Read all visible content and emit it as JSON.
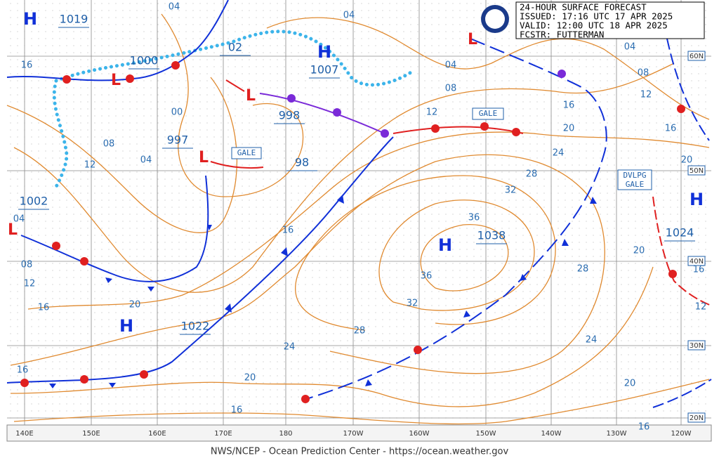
{
  "header": {
    "lines": [
      "24-HOUR SURFACE FORECAST",
      "ISSUED: 17:16 UTC 17 APR 2025",
      "VALID:  12:00 UTC 18 APR 2025",
      "FCSTR:  FUTTERMAN"
    ]
  },
  "footer": "NWS/NCEP - Ocean Prediction Center - https://ocean.weather.gov",
  "longitude_labels": [
    "140E",
    "150E",
    "160E",
    "170E",
    "180",
    "170W",
    "160W",
    "150W",
    "140W",
    "130W",
    "120W"
  ],
  "latitude_labels": [
    "60N",
    "50N",
    "40N",
    "30N",
    "20N"
  ],
  "centers": [
    "H",
    "H",
    "H",
    "H",
    "H",
    "L",
    "L",
    "L",
    "L",
    "L"
  ],
  "pressure_labels": [
    "1019",
    "1007",
    "1038",
    "1022",
    "1024",
    "1000",
    "998",
    "997",
    "1002",
    "02",
    "98"
  ],
  "gale_labels": [
    "GALE",
    "GALE",
    [
      "DVLPG",
      "GALE"
    ]
  ],
  "isobar_labels": [
    "04",
    "04",
    "16",
    "08",
    "12",
    "04",
    "00",
    "16",
    "04",
    "08",
    "12",
    "16",
    "20",
    "24",
    "20",
    "16",
    "28",
    "32",
    "36",
    "36",
    "32",
    "28",
    "24",
    "20",
    "16",
    "12",
    "08",
    "04",
    "04",
    "08",
    "12",
    "16",
    "20",
    "20",
    "28",
    "24",
    "20",
    "16",
    "16",
    "12",
    "16"
  ]
}
